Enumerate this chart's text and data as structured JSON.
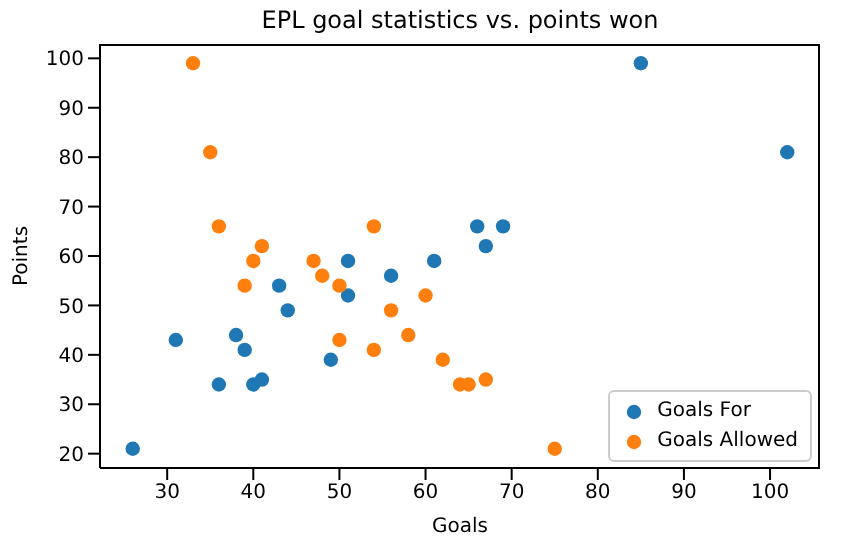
{
  "chart_data": {
    "type": "scatter",
    "title": "EPL goal statistics vs. points won",
    "xlabel": "Goals",
    "ylabel": "Points",
    "xlim": [
      22.2,
      105.8
    ],
    "xticks": [
      30,
      40,
      50,
      60,
      70,
      80,
      90,
      100
    ],
    "ylim": [
      17.1,
      102.9
    ],
    "yticks": [
      20,
      30,
      40,
      50,
      60,
      70,
      80,
      90,
      100
    ],
    "grid": false,
    "legend": "bottom right",
    "marker": "circle",
    "series": [
      {
        "name": "Goals For",
        "color": "#1f77b4",
        "x": [
          26,
          31,
          36,
          38,
          39,
          40,
          41,
          43,
          44,
          49,
          51,
          51,
          56,
          61,
          66,
          67,
          69,
          85,
          102
        ],
        "values": [
          21,
          43,
          34,
          44,
          41,
          34,
          35,
          54,
          49,
          39,
          59,
          52,
          56,
          59,
          66,
          62,
          66,
          99,
          81
        ]
      },
      {
        "name": "Goals Allowed",
        "color": "#ff7f0e",
        "x": [
          33,
          35,
          36,
          41,
          40,
          39,
          47,
          48,
          50,
          54,
          56,
          50,
          54,
          58,
          60,
          62,
          64,
          65,
          67,
          75
        ],
        "values": [
          99,
          81,
          66,
          62,
          59,
          54,
          59,
          56,
          54,
          66,
          49,
          43,
          41,
          44,
          52,
          39,
          34,
          34,
          35,
          21
        ]
      }
    ]
  }
}
